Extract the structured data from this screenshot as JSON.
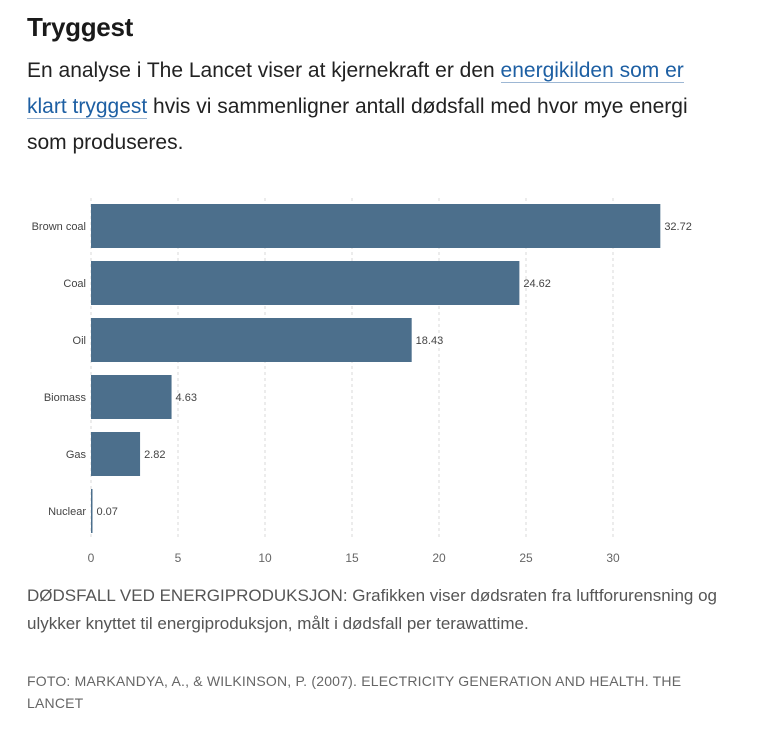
{
  "article": {
    "headline": "Tryggest",
    "intro_before": "En analyse i The Lancet viser at kjernekraft er den ",
    "intro_link": "energikilden som er klart tryggest",
    "intro_after": " hvis vi sammenligner antall dødsfall med hvor mye energi som produseres."
  },
  "figure": {
    "caption": "DØDSFALL VED ENERGIPRODUKSJON: Grafikken viser dødsraten fra luftforurensning og ulykker knyttet til energiproduksjon, målt i dødsfall per terawattime.",
    "credit": "FOTO: MARKANDYA, A., & WILKINSON, P. (2007). ELECTRICITY GENERATION AND HEALTH. THE LANCET"
  },
  "chart_data": {
    "type": "bar",
    "orientation": "horizontal",
    "categories": [
      "Brown coal",
      "Coal",
      "Oil",
      "Biomass",
      "Gas",
      "Nuclear"
    ],
    "values": [
      32.72,
      24.62,
      18.43,
      4.63,
      2.82,
      0.07
    ],
    "value_labels": [
      "32.72",
      "24.62",
      "18.43",
      "4.63",
      "2.82",
      "0.07"
    ],
    "xlim": [
      0,
      33.5
    ],
    "xticks": [
      0,
      5,
      10,
      15,
      20,
      25,
      30
    ],
    "grid": "vertical-dashed",
    "bar_color": "#4c6f8c"
  }
}
